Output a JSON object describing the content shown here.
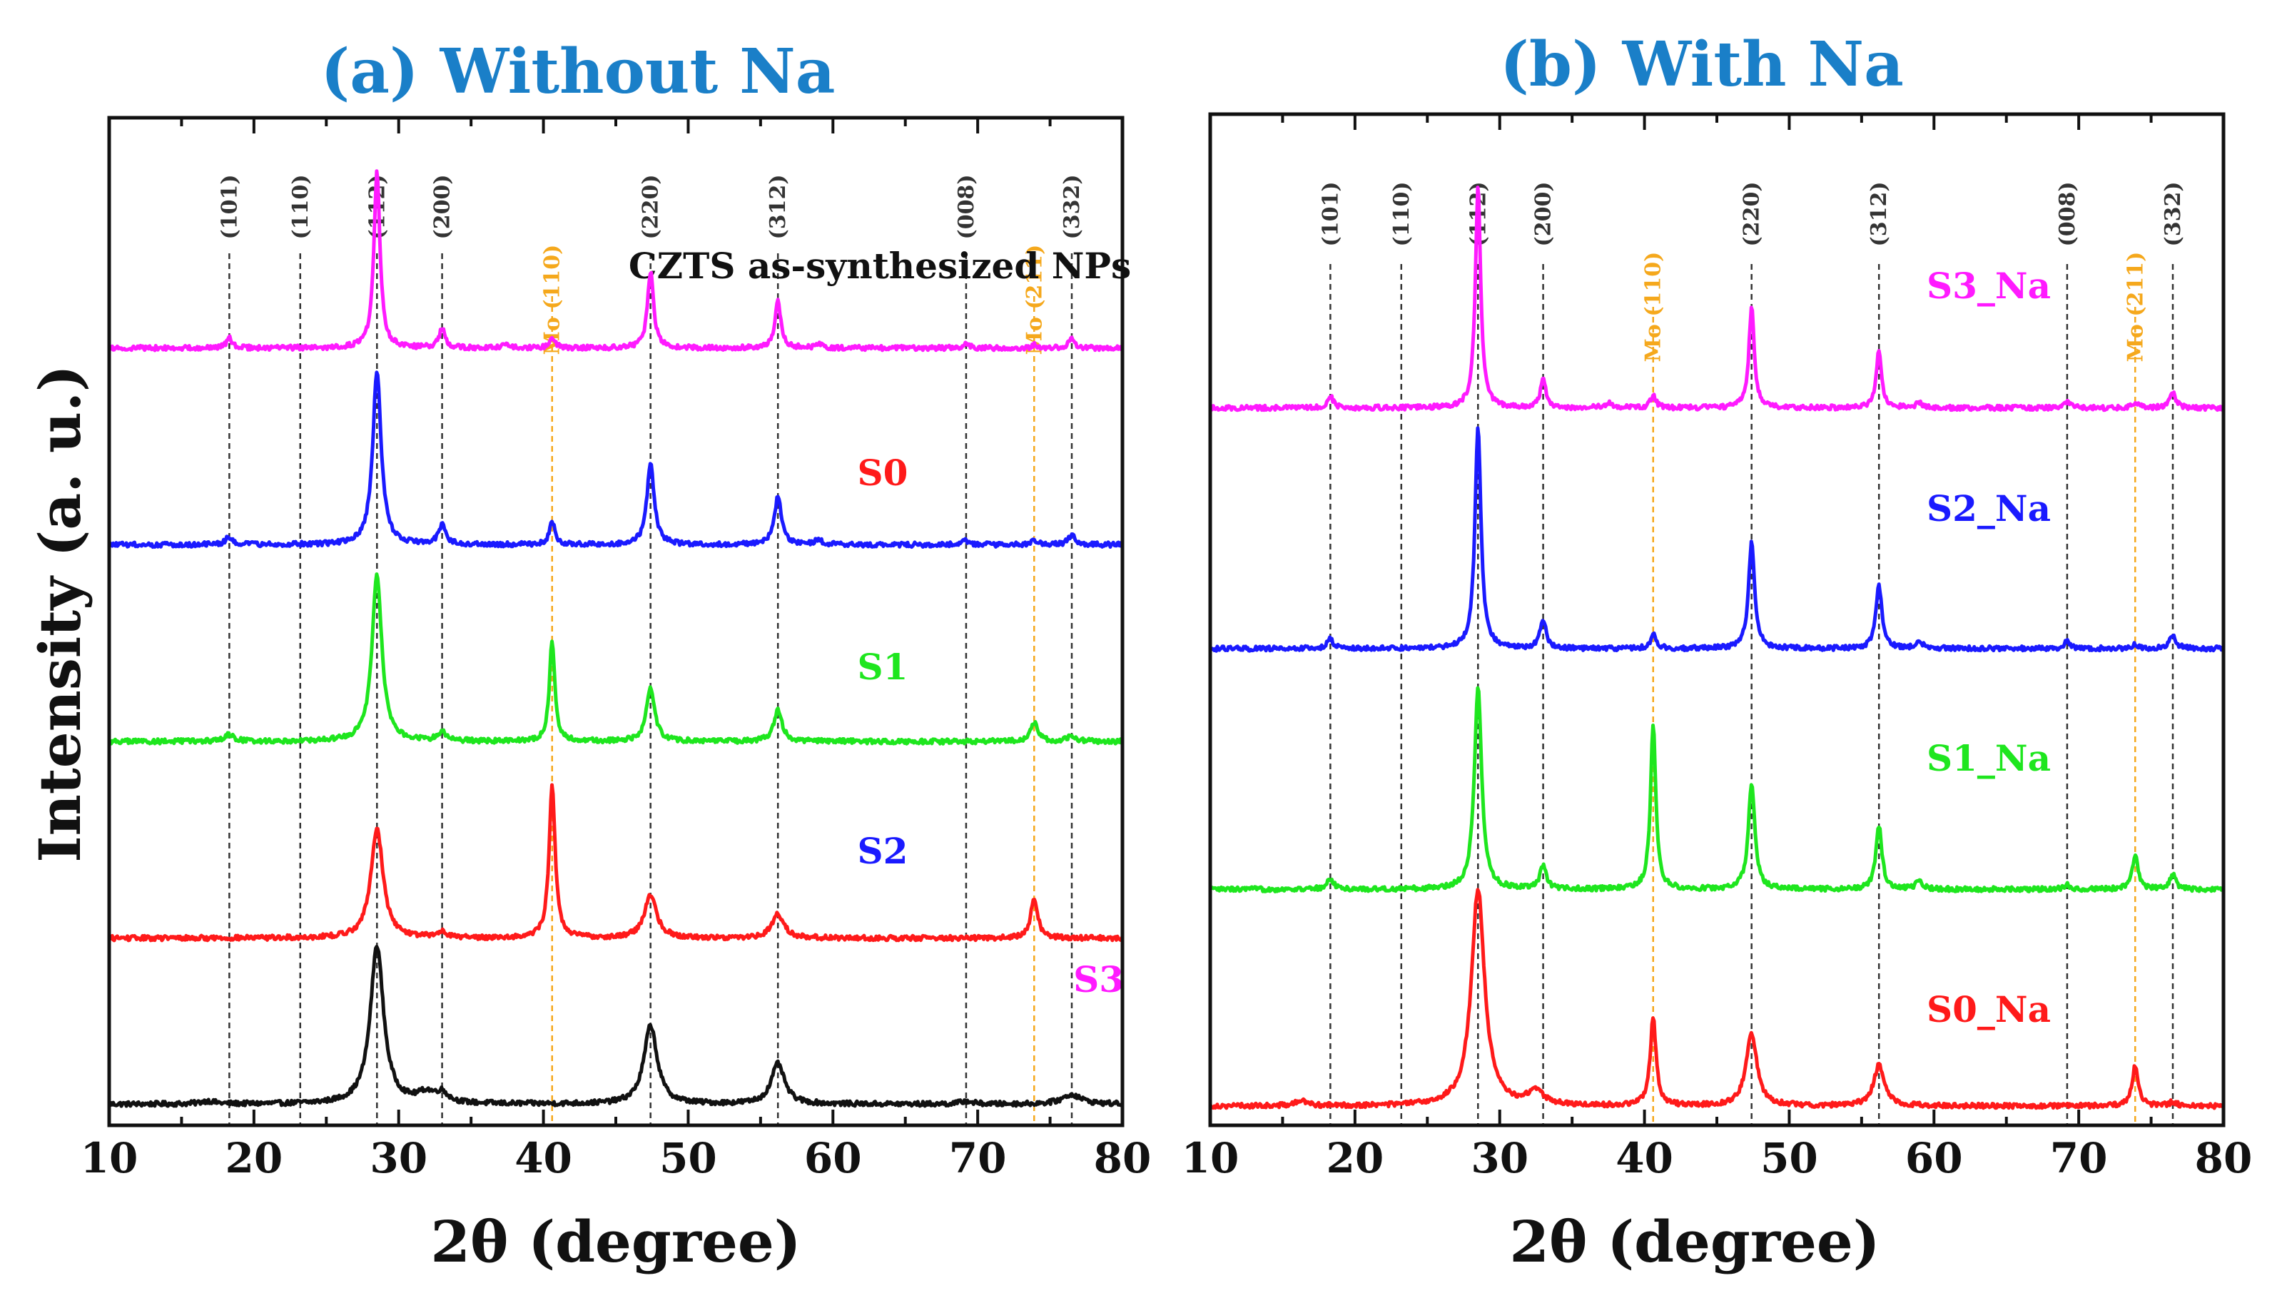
{
  "chart_data": [
    {
      "type": "line",
      "title": "(a) Without Na",
      "title_color": "#1a7fc8",
      "xlabel": "2θ (degree)",
      "ylabel": "Intensity (a. u.)",
      "xlim": [
        10,
        80
      ],
      "ylim": [
        0,
        10.5
      ],
      "xticks": [
        10,
        20,
        30,
        40,
        50,
        60,
        70,
        80
      ],
      "reference_lines": [
        {
          "x": 18.3,
          "label": "(101)",
          "color": "#333333"
        },
        {
          "x": 23.2,
          "label": "(110)",
          "color": "#333333"
        },
        {
          "x": 28.5,
          "label": "(112)",
          "color": "#333333"
        },
        {
          "x": 33.0,
          "label": "(200)",
          "color": "#333333"
        },
        {
          "x": 40.6,
          "label": "Mo (110)",
          "color": "#f5a81c"
        },
        {
          "x": 47.4,
          "label": "(220)",
          "color": "#333333"
        },
        {
          "x": 56.2,
          "label": "(312)",
          "color": "#333333"
        },
        {
          "x": 69.2,
          "label": "(008)",
          "color": "#333333"
        },
        {
          "x": 73.9,
          "label": "Mo (211)",
          "color": "#f5a81c"
        },
        {
          "x": 76.5,
          "label": "(332)",
          "color": "#333333"
        }
      ],
      "series": [
        {
          "name": "CZTS as-synthesized NPs",
          "color": "#111111",
          "baseline": 0.22,
          "peaks": [
            [
              16.8,
              0.03,
              0.6
            ],
            [
              28.5,
              1.65,
              0.55
            ],
            [
              31.9,
              0.1,
              0.7
            ],
            [
              33.0,
              0.1,
              0.5
            ],
            [
              47.4,
              0.82,
              0.55
            ],
            [
              56.2,
              0.42,
              0.55
            ],
            [
              69.2,
              0.03,
              0.5
            ],
            [
              76.5,
              0.1,
              0.8
            ]
          ]
        },
        {
          "name": "S0",
          "color": "#ff1a1a",
          "baseline": 1.95,
          "peaks": [
            [
              28.5,
              1.15,
              0.5
            ],
            [
              33.0,
              0.06,
              0.4
            ],
            [
              40.6,
              1.6,
              0.25
            ],
            [
              47.4,
              0.45,
              0.5
            ],
            [
              56.2,
              0.25,
              0.5
            ],
            [
              73.9,
              0.4,
              0.3
            ]
          ]
        },
        {
          "name": "S1",
          "color": "#1ee61e",
          "baseline": 4.0,
          "peaks": [
            [
              18.3,
              0.07,
              0.4
            ],
            [
              28.5,
              1.75,
              0.4
            ],
            [
              33.0,
              0.1,
              0.35
            ],
            [
              40.6,
              1.05,
              0.22
            ],
            [
              47.4,
              0.55,
              0.35
            ],
            [
              56.2,
              0.32,
              0.35
            ],
            [
              73.9,
              0.2,
              0.3
            ],
            [
              76.5,
              0.05,
              0.4
            ]
          ]
        },
        {
          "name": "S2",
          "color": "#1a1aff",
          "baseline": 6.05,
          "peaks": [
            [
              18.3,
              0.08,
              0.3
            ],
            [
              28.5,
              1.8,
              0.35
            ],
            [
              33.0,
              0.2,
              0.3
            ],
            [
              40.6,
              0.25,
              0.22
            ],
            [
              47.4,
              0.85,
              0.3
            ],
            [
              56.2,
              0.5,
              0.3
            ],
            [
              59.0,
              0.05,
              0.3
            ],
            [
              69.2,
              0.04,
              0.3
            ],
            [
              73.9,
              0.05,
              0.25
            ],
            [
              76.5,
              0.1,
              0.3
            ]
          ]
        },
        {
          "name": "S3",
          "color": "#ff1aff",
          "baseline": 8.1,
          "peaks": [
            [
              18.3,
              0.1,
              0.25
            ],
            [
              28.5,
              1.85,
              0.25
            ],
            [
              33.0,
              0.2,
              0.25
            ],
            [
              37.5,
              0.04,
              0.3
            ],
            [
              40.6,
              0.12,
              0.22
            ],
            [
              47.4,
              0.8,
              0.25
            ],
            [
              56.2,
              0.48,
              0.25
            ],
            [
              59.0,
              0.04,
              0.3
            ],
            [
              69.2,
              0.05,
              0.25
            ],
            [
              73.9,
              0.03,
              0.25
            ],
            [
              76.5,
              0.1,
              0.25
            ]
          ]
        }
      ]
    },
    {
      "type": "line",
      "title": "(b) With Na",
      "title_color": "#1a7fc8",
      "xlabel": "2θ (degree)",
      "ylabel": "",
      "xlim": [
        10,
        80
      ],
      "ylim": [
        0,
        10.5
      ],
      "xticks": [
        10,
        20,
        30,
        40,
        50,
        60,
        70,
        80
      ],
      "reference_lines": [
        {
          "x": 18.3,
          "label": "(101)",
          "color": "#333333"
        },
        {
          "x": 23.2,
          "label": "(110)",
          "color": "#333333"
        },
        {
          "x": 28.5,
          "label": "(112)",
          "color": "#333333"
        },
        {
          "x": 33.0,
          "label": "(200)",
          "color": "#333333"
        },
        {
          "x": 40.6,
          "label": "Mo (110)",
          "color": "#f5a81c"
        },
        {
          "x": 47.4,
          "label": "(220)",
          "color": "#333333"
        },
        {
          "x": 56.2,
          "label": "(312)",
          "color": "#333333"
        },
        {
          "x": 69.2,
          "label": "(008)",
          "color": "#333333"
        },
        {
          "x": 73.9,
          "label": "Mo (211)",
          "color": "#f5a81c"
        },
        {
          "x": 76.5,
          "label": "(332)",
          "color": "#333333"
        }
      ],
      "series": [
        {
          "name": "S0_Na",
          "color": "#ff1a1a",
          "baseline": 0.2,
          "peaks": [
            [
              16.3,
              0.05,
              0.5
            ],
            [
              28.5,
              2.25,
              0.55
            ],
            [
              32.5,
              0.15,
              0.6
            ],
            [
              40.6,
              0.9,
              0.25
            ],
            [
              47.4,
              0.75,
              0.45
            ],
            [
              56.2,
              0.42,
              0.45
            ],
            [
              73.9,
              0.42,
              0.25
            ],
            [
              76.5,
              0.04,
              0.3
            ]
          ]
        },
        {
          "name": "S1_Na",
          "color": "#1ee61e",
          "baseline": 2.45,
          "peaks": [
            [
              18.3,
              0.1,
              0.3
            ],
            [
              28.5,
              2.1,
              0.3
            ],
            [
              33.0,
              0.25,
              0.25
            ],
            [
              40.6,
              1.7,
              0.22
            ],
            [
              47.4,
              1.1,
              0.27
            ],
            [
              56.2,
              0.65,
              0.25
            ],
            [
              59.0,
              0.08,
              0.3
            ],
            [
              69.2,
              0.05,
              0.25
            ],
            [
              73.9,
              0.35,
              0.25
            ],
            [
              76.5,
              0.15,
              0.25
            ]
          ]
        },
        {
          "name": "S2_Na",
          "color": "#1a1aff",
          "baseline": 4.95,
          "peaks": [
            [
              18.3,
              0.1,
              0.25
            ],
            [
              28.5,
              2.3,
              0.25
            ],
            [
              33.0,
              0.3,
              0.25
            ],
            [
              40.6,
              0.15,
              0.22
            ],
            [
              47.4,
              1.1,
              0.25
            ],
            [
              56.2,
              0.65,
              0.25
            ],
            [
              59.0,
              0.07,
              0.3
            ],
            [
              69.2,
              0.08,
              0.25
            ],
            [
              73.9,
              0.05,
              0.25
            ],
            [
              76.5,
              0.15,
              0.25
            ]
          ]
        },
        {
          "name": "S3_Na",
          "color": "#ff1aff",
          "baseline": 7.45,
          "peaks": [
            [
              18.3,
              0.12,
              0.25
            ],
            [
              28.5,
              2.3,
              0.22
            ],
            [
              33.0,
              0.3,
              0.22
            ],
            [
              37.5,
              0.05,
              0.3
            ],
            [
              40.6,
              0.13,
              0.22
            ],
            [
              47.4,
              1.05,
              0.22
            ],
            [
              56.2,
              0.6,
              0.22
            ],
            [
              59.0,
              0.05,
              0.3
            ],
            [
              69.2,
              0.07,
              0.25
            ],
            [
              73.9,
              0.05,
              0.25
            ],
            [
              76.5,
              0.15,
              0.25
            ]
          ]
        }
      ]
    }
  ]
}
